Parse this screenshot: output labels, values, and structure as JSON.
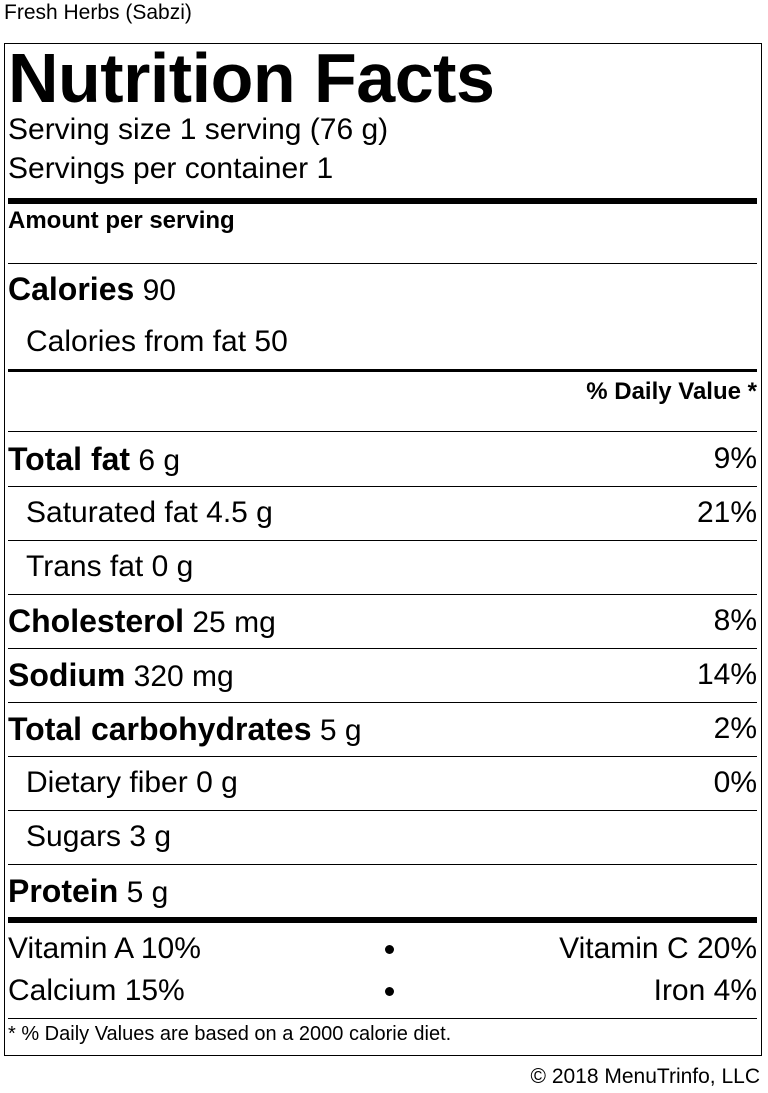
{
  "product_name": "Fresh Herbs (Sabzi)",
  "title": "Nutrition Facts",
  "serving_size": "Serving size 1 serving (76 g)",
  "servings_per_container": "Servings per container 1",
  "amount_per_serving": "Amount per serving",
  "calories": {
    "label": "Calories",
    "value": "90"
  },
  "calories_from_fat": "Calories from fat 50",
  "daily_value_header": "% Daily Value *",
  "nutrients": [
    {
      "name": "Total fat",
      "amount": "6 g",
      "dv": "9%"
    },
    {
      "name": "Saturated fat",
      "amount": "4.5 g",
      "dv": "21%"
    },
    {
      "name": "Trans fat",
      "amount": "0 g",
      "dv": ""
    },
    {
      "name": "Cholesterol",
      "amount": "25 mg",
      "dv": "8%"
    },
    {
      "name": "Sodium",
      "amount": "320 mg",
      "dv": "14%"
    },
    {
      "name": "Total carbohydrates",
      "amount": "5 g",
      "dv": "2%"
    },
    {
      "name": "Dietary fiber",
      "amount": "0 g",
      "dv": "0%"
    },
    {
      "name": "Sugars",
      "amount": "3 g",
      "dv": ""
    },
    {
      "name": "Protein",
      "amount": "5 g",
      "dv": ""
    }
  ],
  "vitamins": [
    {
      "left": "Vitamin A 10%",
      "right": "Vitamin C 20%"
    },
    {
      "left": "Calcium 15%",
      "right": "Iron 4%"
    }
  ],
  "footnote": "* % Daily Values are based on a 2000 calorie diet.",
  "copyright": "© 2018 MenuTrinfo, LLC"
}
